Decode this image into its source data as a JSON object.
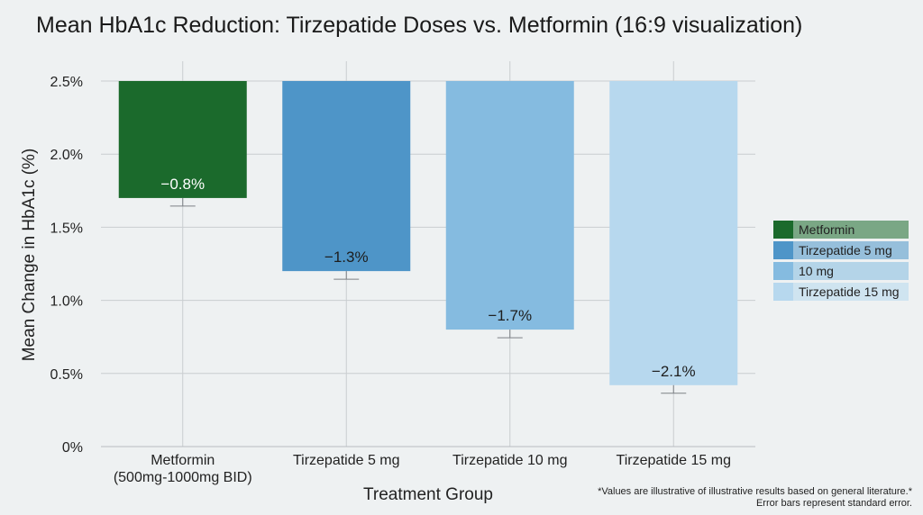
{
  "chart_data": {
    "type": "bar",
    "title": "Mean HbA1c Reduction: Tirzepatide Doses vs. Metformin (16:9 visualization)",
    "xlabel": "Treatment Group",
    "ylabel": "Mean Change in HbA1c (%)",
    "ylim": [
      0,
      2.5
    ],
    "yticks": [
      "0%",
      "0.5%",
      "1.0%",
      "1.5%",
      "2.0%",
      "2.5%"
    ],
    "grid": true,
    "legend_position": "right",
    "categories": [
      "Metformin\n(500mg-1000mg BID)",
      "Tirzepatide 5 mg",
      "Tirzepatide 10 mg",
      "Tirzepatide 15 mg"
    ],
    "bars": [
      {
        "category": "Metformin",
        "top": 2.5,
        "bottom": 1.7,
        "label": "−0.8%",
        "color": "#1b6a2c",
        "label_color": "#ffffff"
      },
      {
        "category": "Tirzepatide 5 mg",
        "top": 2.5,
        "bottom": 1.2,
        "label": "−1.3%",
        "color": "#4e95c8",
        "label_color": "#1d1d1d"
      },
      {
        "category": "Tirzepatide 10 mg",
        "top": 2.5,
        "bottom": 0.8,
        "label": "−1.7%",
        "color": "#85bbe0",
        "label_color": "#1d1d1d"
      },
      {
        "category": "Tirzepatide 15 mg",
        "top": 2.5,
        "bottom": 0.42,
        "label": "−2.1%",
        "color": "#b7d8ee",
        "label_color": "#1d1d1d"
      }
    ],
    "legend": [
      {
        "label": "Metformin",
        "color": "#1b6a2c"
      },
      {
        "label": "Tirzepatide 5 mg",
        "color": "#4e95c8"
      },
      {
        "label": "10 mg",
        "color": "#85bbe0"
      },
      {
        "label": "Tirzepatide 15 mg",
        "color": "#b7d8ee"
      }
    ],
    "footnote": [
      "*Values are illustrative of illustrative results based on general literature.*",
      "Error bars represent standard error."
    ]
  }
}
